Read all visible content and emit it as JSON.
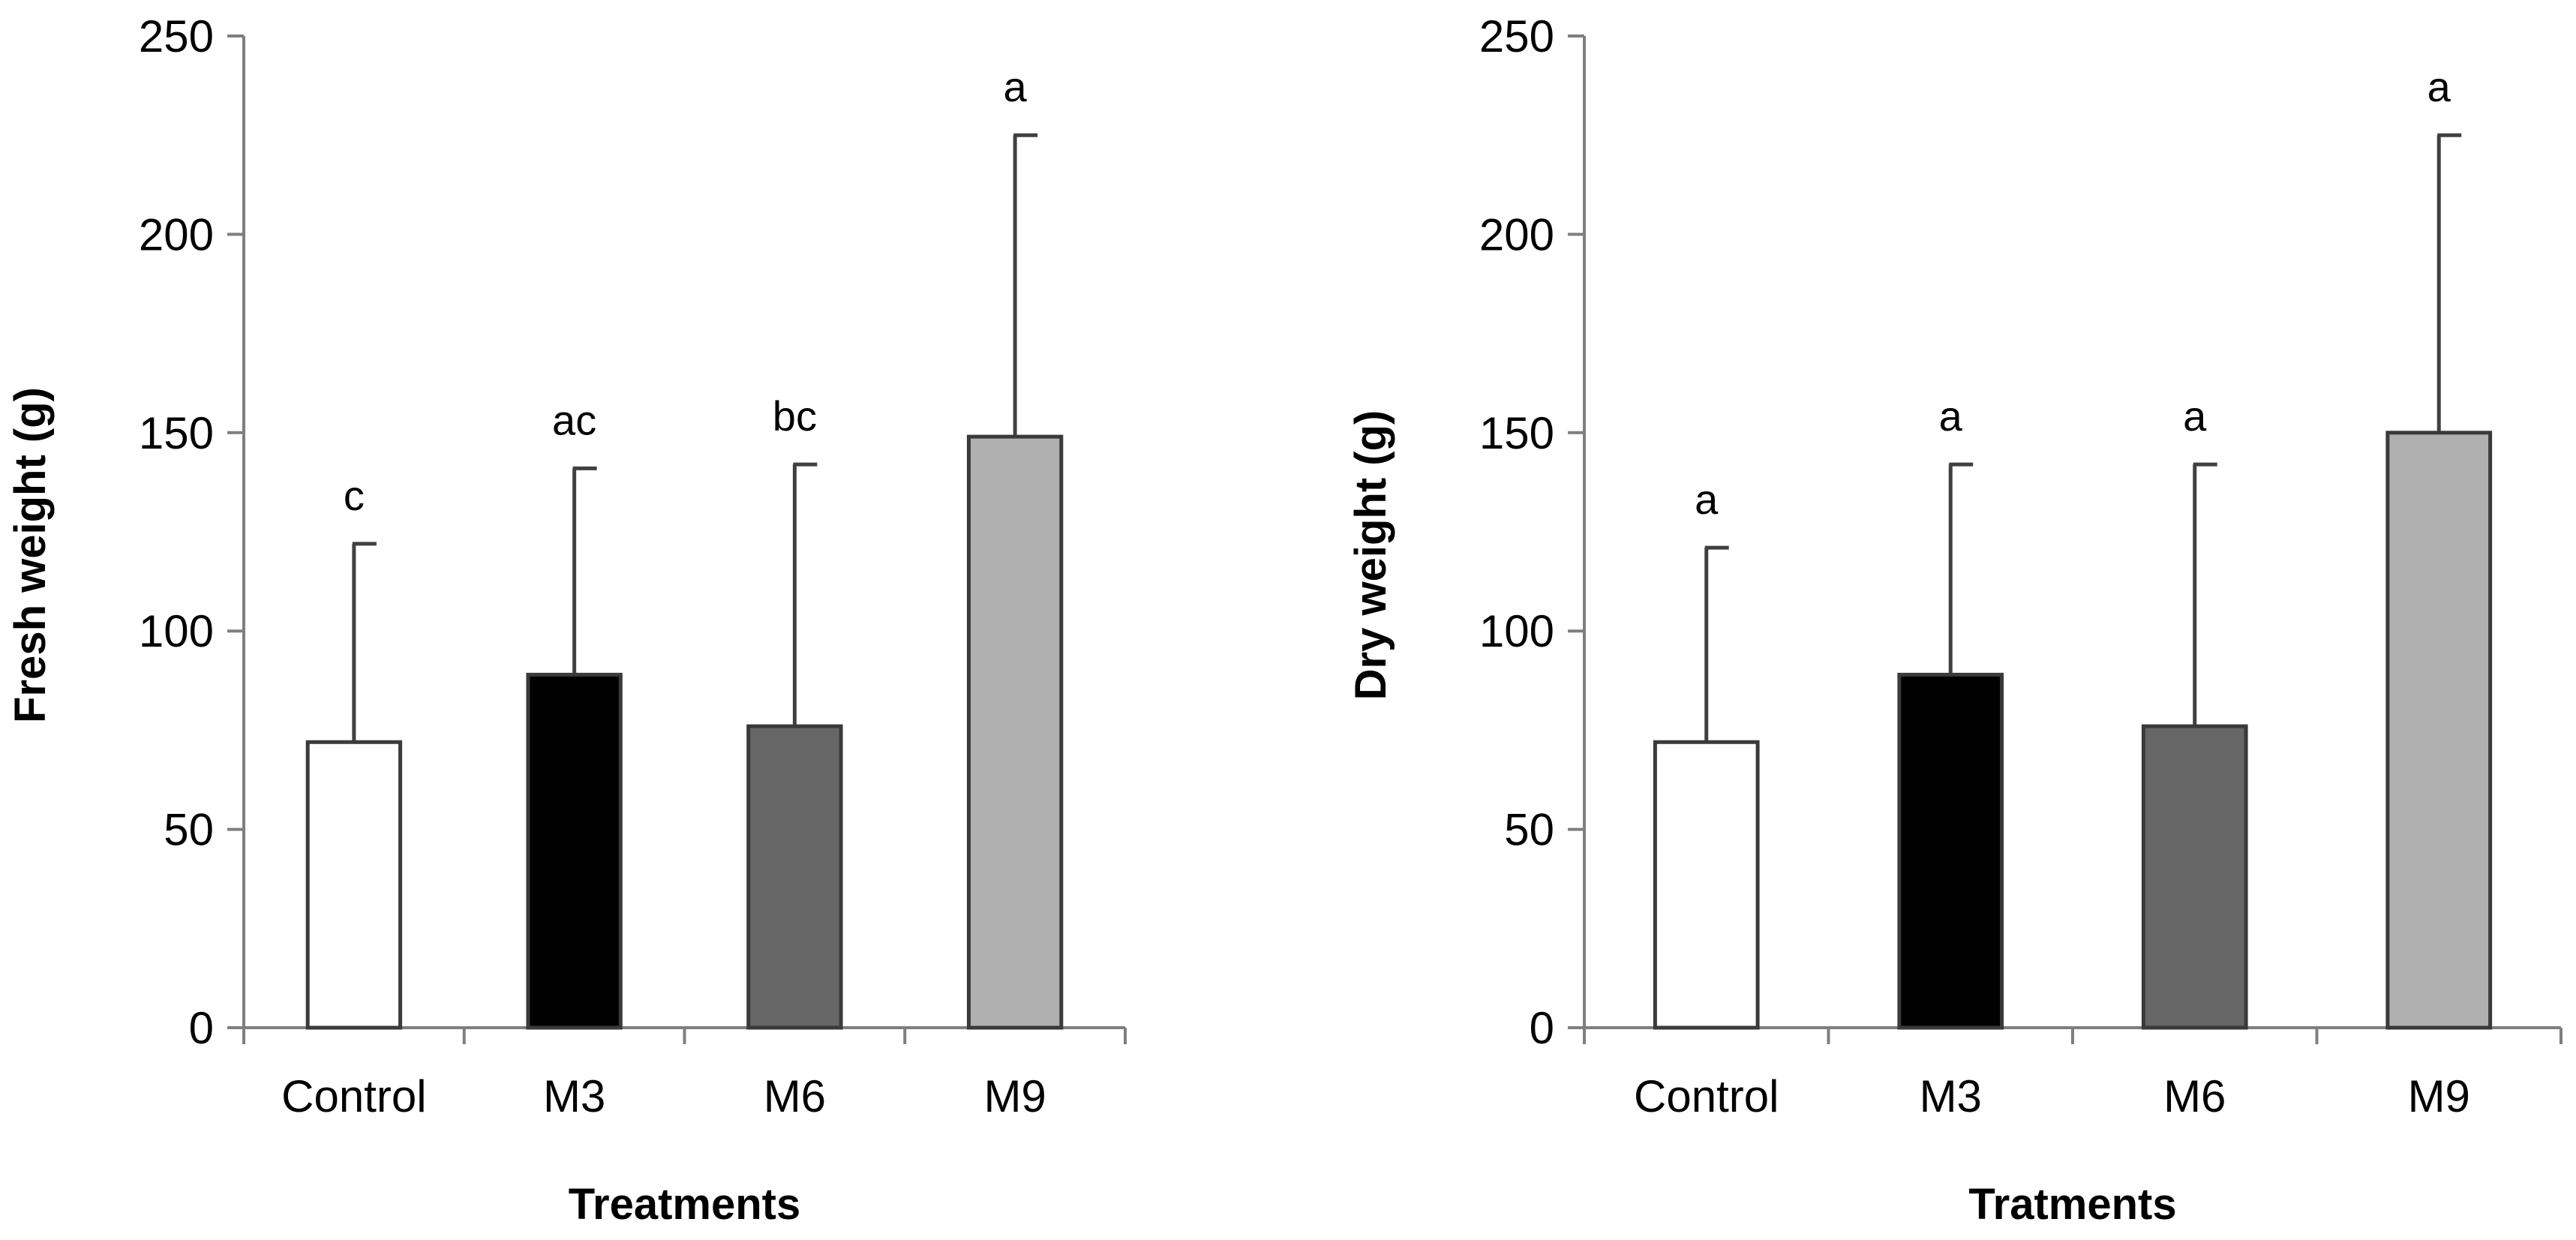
{
  "colors": {
    "control": "#ffffff",
    "m3": "#000000",
    "m6": "#666666",
    "m9": "#b0b0b0",
    "axis": "#7f7f7f",
    "error": "#404040"
  },
  "chart_data": [
    {
      "type": "bar",
      "title": "",
      "xlabel": "Treatments",
      "ylabel": "Fresh weight (g)",
      "ylim": [
        0,
        250
      ],
      "yticks": [
        0,
        50,
        100,
        150,
        200,
        250
      ],
      "categories": [
        "Control",
        "M3",
        "M6",
        "M9"
      ],
      "values": [
        72,
        89,
        76,
        149
      ],
      "error_upper": [
        122,
        141,
        142,
        225
      ],
      "significance_letters": [
        "c",
        "ac",
        "bc",
        "a"
      ],
      "grid": false
    },
    {
      "type": "bar",
      "title": "",
      "xlabel": "Tratments",
      "ylabel": "Dry weight (g)",
      "ylim": [
        0,
        250
      ],
      "yticks": [
        0,
        50,
        100,
        150,
        200,
        250
      ],
      "categories": [
        "Control",
        "M3",
        "M6",
        "M9"
      ],
      "values": [
        72,
        89,
        76,
        150
      ],
      "error_upper": [
        121,
        142,
        142,
        225
      ],
      "significance_letters": [
        "a",
        "a",
        "a",
        "a"
      ],
      "grid": false
    }
  ]
}
